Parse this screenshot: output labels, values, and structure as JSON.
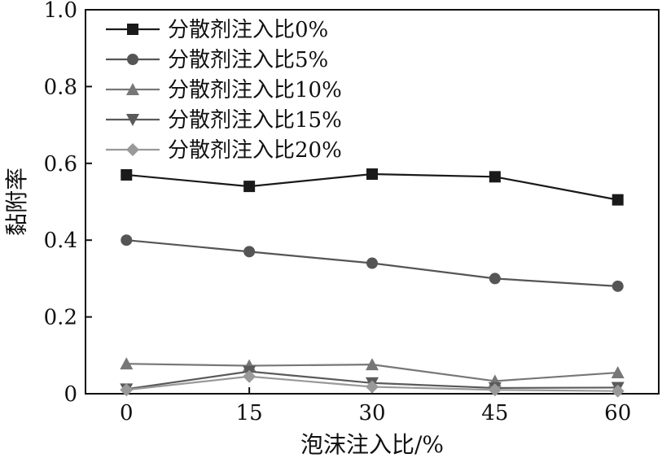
{
  "chart_data": {
    "type": "line",
    "xlabel": "泡沫注入比/%",
    "ylabel": "黏附率",
    "x": [
      0,
      15,
      30,
      45,
      60
    ],
    "xlim": [
      -5,
      65
    ],
    "ylim": [
      0,
      1.0
    ],
    "xticks": [
      "0",
      "15",
      "30",
      "45",
      "60"
    ],
    "yticks": [
      "0",
      "0.2",
      "0.4",
      "0.6",
      "0.8",
      "1.0"
    ],
    "legend_position": "top-left",
    "grid": false,
    "series": [
      {
        "name": "分散剂注入比0%",
        "marker": "square",
        "color": "#1a1a1a",
        "values": [
          0.57,
          0.54,
          0.572,
          0.565,
          0.505
        ]
      },
      {
        "name": "分散剂注入比5%",
        "marker": "circle",
        "color": "#555555",
        "values": [
          0.4,
          0.37,
          0.34,
          0.3,
          0.28
        ]
      },
      {
        "name": "分散剂注入比10%",
        "marker": "triangle-up",
        "color": "#777777",
        "values": [
          0.078,
          0.073,
          0.076,
          0.033,
          0.055
        ]
      },
      {
        "name": "分散剂注入比15%",
        "marker": "triangle-down",
        "color": "#5a5a5a",
        "values": [
          0.012,
          0.058,
          0.028,
          0.015,
          0.016
        ]
      },
      {
        "name": "分散剂注入比20%",
        "marker": "diamond",
        "color": "#999999",
        "values": [
          0.01,
          0.045,
          0.018,
          0.01,
          0.007
        ]
      }
    ]
  }
}
